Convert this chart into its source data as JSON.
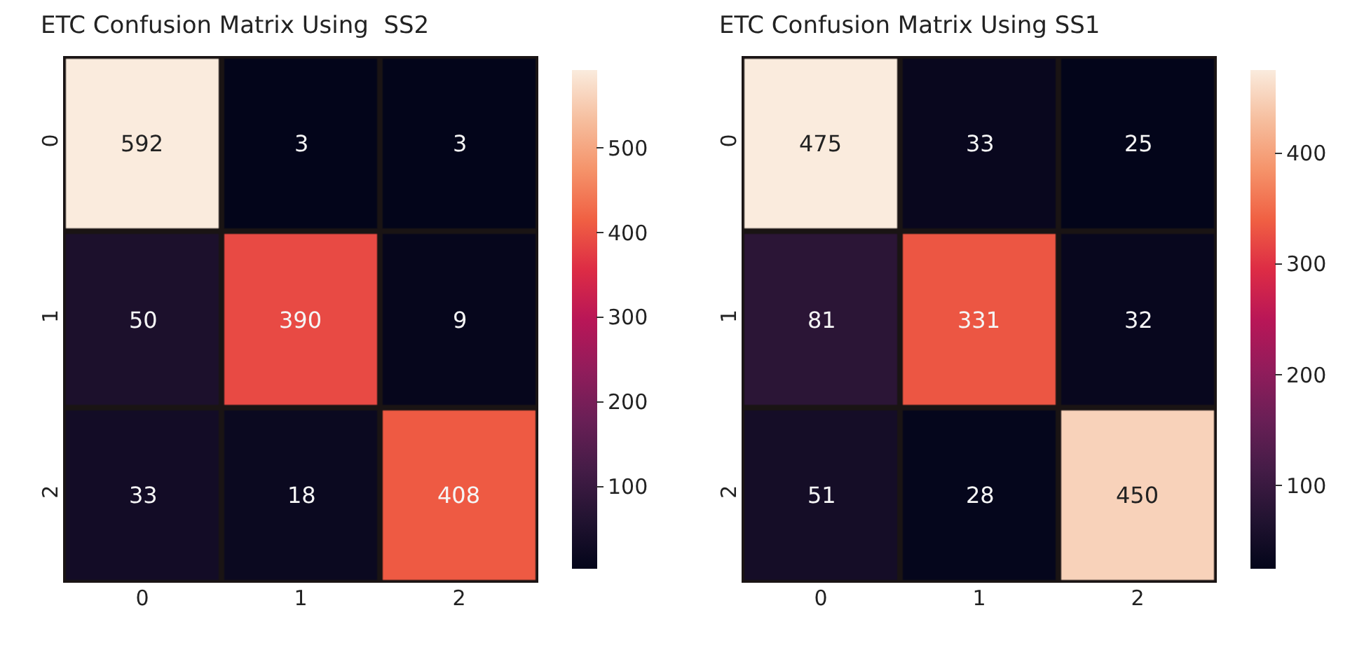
{
  "chart_data": [
    {
      "type": "heatmap",
      "title": "ETC Confusion Matrix Using  SS2",
      "categories": [
        "0",
        "1",
        "2"
      ],
      "y_categories": [
        "0",
        "1",
        "2"
      ],
      "cells": [
        [
          592,
          3,
          3
        ],
        [
          50,
          390,
          9
        ],
        [
          33,
          18,
          408
        ]
      ],
      "clim": [
        3,
        592
      ],
      "cticks": [
        100,
        200,
        300,
        400,
        500
      ],
      "data_labels": true
    },
    {
      "type": "heatmap",
      "title": "ETC Confusion Matrix Using SS1",
      "categories": [
        "0",
        "1",
        "2"
      ],
      "y_categories": [
        "0",
        "1",
        "2"
      ],
      "cells": [
        [
          475,
          33,
          25
        ],
        [
          81,
          331,
          32
        ],
        [
          51,
          28,
          450
        ]
      ],
      "clim": [
        25,
        475
      ],
      "cticks": [
        100,
        200,
        300,
        400
      ],
      "data_labels": true
    }
  ]
}
